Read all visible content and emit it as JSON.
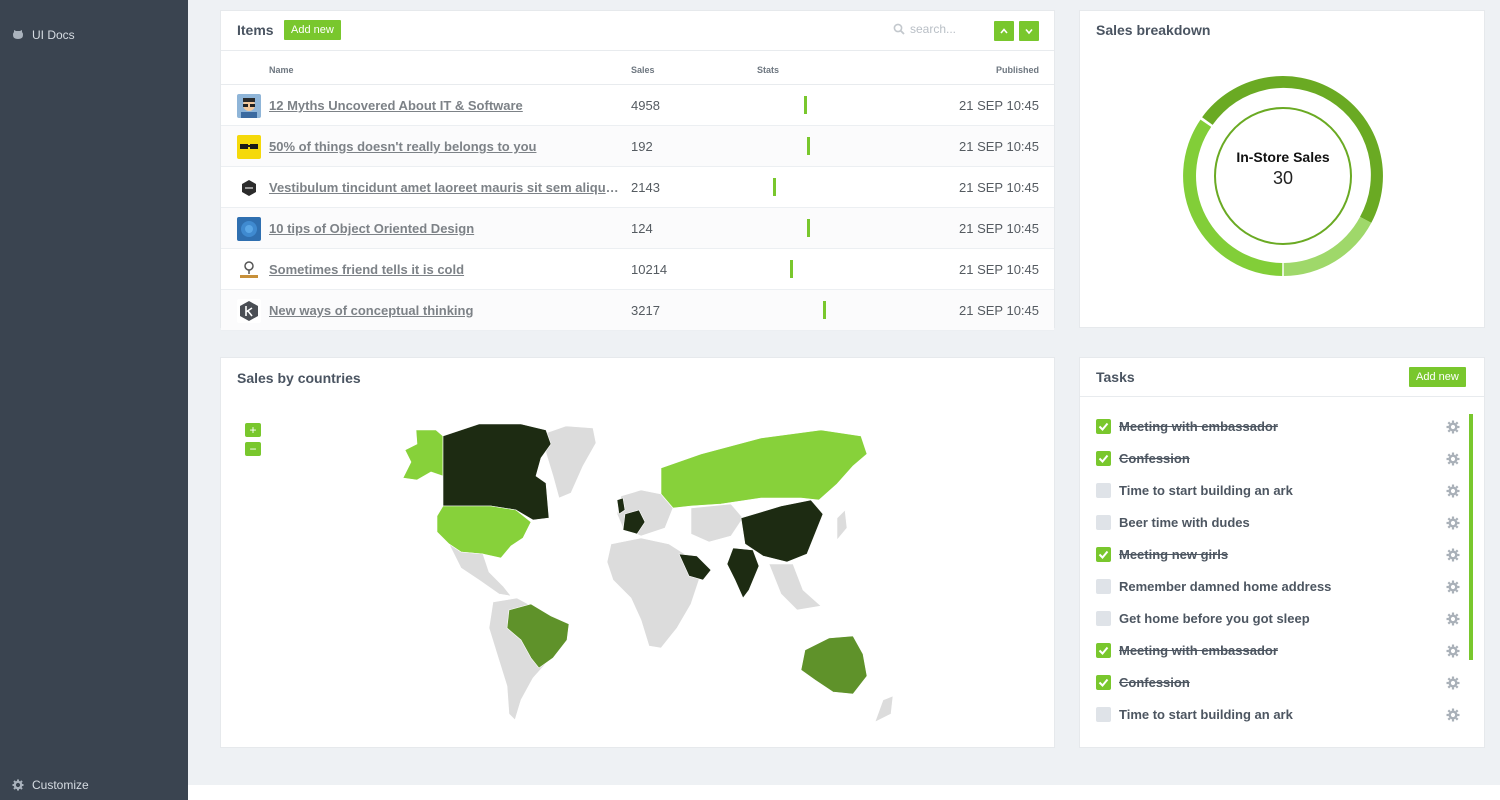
{
  "sidebar": {
    "docs_label": "UI Docs",
    "customize_label": "Customize"
  },
  "items_panel": {
    "title": "Items",
    "add_label": "Add new",
    "search_placeholder": "search...",
    "columns": {
      "name": "Name",
      "sales": "Sales",
      "stats": "Stats",
      "published": "Published"
    },
    "rows": [
      {
        "name": "12 Myths Uncovered About IT & Software",
        "sales": "4958",
        "published": "21 SEP 10:45",
        "stat": 0.59,
        "thumb": "avatar-boy"
      },
      {
        "name": "50% of things doesn't really belongs to you",
        "sales": "192",
        "published": "21 SEP 10:45",
        "stat": 0.62,
        "thumb": "glasses"
      },
      {
        "name": "Vestibulum tincidunt amet laoreet mauris sit sem aliquam",
        "sales": "2143",
        "published": "21 SEP 10:45",
        "stat": 0.2,
        "thumb": "badge"
      },
      {
        "name": "10 tips of Object Oriented Design",
        "sales": "124",
        "published": "21 SEP 10:45",
        "stat": 0.62,
        "thumb": "blue-pattern"
      },
      {
        "name": "Sometimes friend tells it is cold",
        "sales": "10214",
        "published": "21 SEP 10:45",
        "stat": 0.41,
        "thumb": "tree-logo"
      },
      {
        "name": "New ways of conceptual thinking",
        "sales": "3217",
        "published": "21 SEP 10:45",
        "stat": 0.83,
        "thumb": "hex-logo"
      }
    ]
  },
  "breakdown_panel": {
    "title": "Sales breakdown",
    "center_title": "In-Store Sales",
    "center_value": "30"
  },
  "map_panel": {
    "title": "Sales by countries",
    "zoom_in": "+",
    "zoom_out": "−"
  },
  "tasks_panel": {
    "title": "Tasks",
    "add_label": "Add new",
    "items": [
      {
        "text": "Meeting with embassador",
        "done": true
      },
      {
        "text": "Confession",
        "done": true
      },
      {
        "text": "Time to start building an ark",
        "done": false
      },
      {
        "text": "Beer time with dudes",
        "done": false
      },
      {
        "text": "Meeting new girls",
        "done": true
      },
      {
        "text": "Remember damned home address",
        "done": false
      },
      {
        "text": "Get home before you got sleep",
        "done": false
      },
      {
        "text": "Meeting with embassador",
        "done": true
      },
      {
        "text": "Confession",
        "done": true
      },
      {
        "text": "Time to start building an ark",
        "done": false
      }
    ]
  },
  "colors": {
    "accent": "#79c72d",
    "sidebar": "#3a4450",
    "map_dark": "#1d2b12",
    "map_mid": "#5f922a",
    "map_light": "#87d13a",
    "map_none": "#dcdcdc"
  }
}
